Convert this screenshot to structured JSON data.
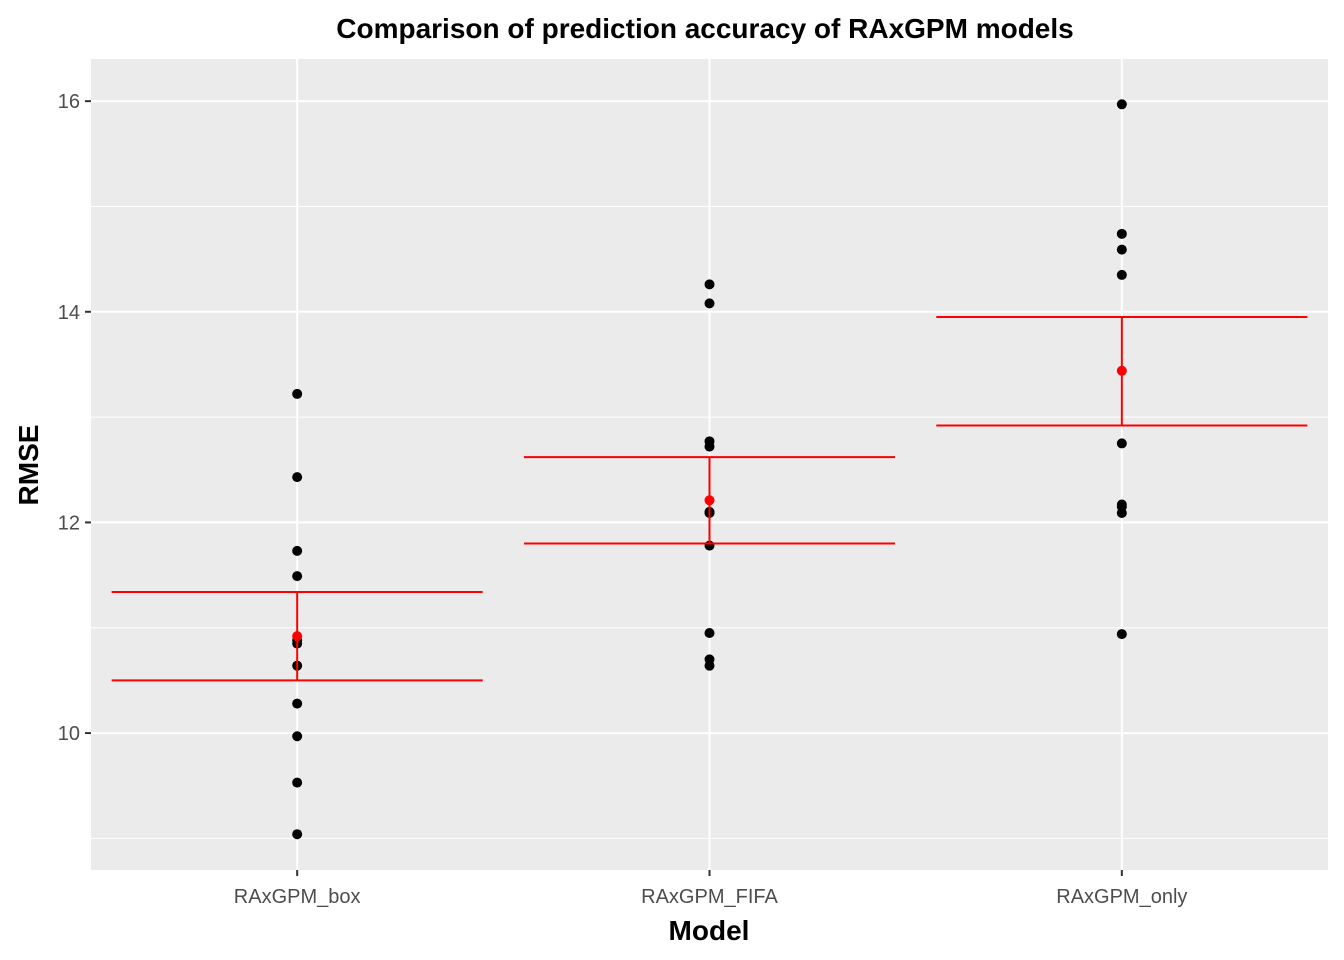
{
  "chart_data": {
    "type": "scatter",
    "title": "Comparison of prediction accuracy of RAxGPM models",
    "xlabel": "Model",
    "ylabel": "RMSE",
    "categories": [
      "RAxGPM_box",
      "RAxGPM_FIFA",
      "RAxGPM_only"
    ],
    "ylim": [
      8.7,
      16.4
    ],
    "yticks": [
      10,
      12,
      14,
      16
    ],
    "grid": true,
    "points": [
      {
        "category": "RAxGPM_box",
        "values": [
          13.22,
          12.43,
          11.73,
          11.49,
          10.88,
          10.85,
          10.64,
          10.28,
          9.97,
          9.53,
          9.04
        ]
      },
      {
        "category": "RAxGPM_FIFA",
        "values": [
          14.26,
          14.08,
          12.77,
          12.72,
          12.1,
          12.09,
          11.78,
          10.95,
          10.7,
          10.64
        ]
      },
      {
        "category": "RAxGPM_only",
        "values": [
          15.97,
          14.74,
          14.59,
          14.35,
          12.75,
          12.17,
          12.15,
          12.09,
          10.94
        ]
      }
    ],
    "summary": [
      {
        "category": "RAxGPM_box",
        "mean": 10.92,
        "lower": 10.5,
        "upper": 11.34
      },
      {
        "category": "RAxGPM_FIFA",
        "mean": 12.21,
        "lower": 11.8,
        "upper": 12.62
      },
      {
        "category": "RAxGPM_only",
        "mean": 13.44,
        "lower": 12.92,
        "upper": 13.95
      }
    ],
    "colors": {
      "panel_background": "#EBEBEB",
      "grid": "#FFFFFF",
      "points": "#000000",
      "summary": "#FF0000",
      "tick_text": "#4D4D4D"
    }
  }
}
